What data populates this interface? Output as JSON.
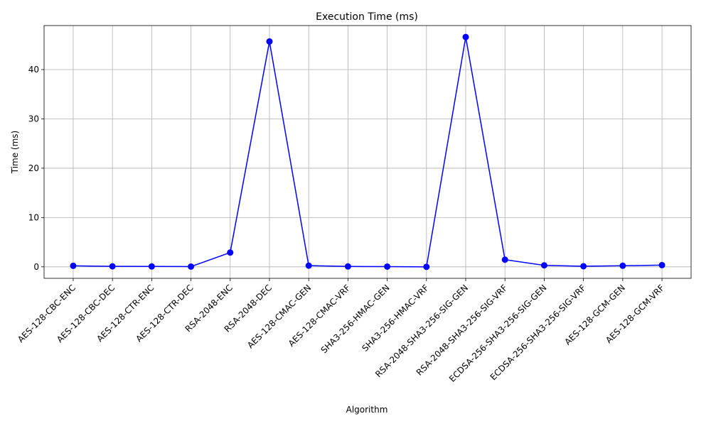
{
  "chart_data": {
    "type": "line",
    "title": "Execution Time (ms)",
    "xlabel": "Algorithm",
    "ylabel": "Time (ms)",
    "categories": [
      "AES-128-CBC-ENC",
      "AES-128-CBC-DEC",
      "AES-128-CTR-ENC",
      "AES-128-CTR-DEC",
      "RSA-2048-ENC",
      "RSA-2048-DEC",
      "AES-128-CMAC-GEN",
      "AES-128-CMAC-VRF",
      "SHA3-256-HMAC-GEN",
      "SHA3-256-HMAC-VRF",
      "RSA-2048-SHA3-256-SIG-GEN",
      "RSA-2048-SHA3-256-SIG-VRF",
      "ECDSA-256-SHA3-256-SIG-GEN",
      "ECDSA-256-SHA3-256-SIG-VRF",
      "AES-128-GCM-GEN",
      "AES-128-GCM-VRF"
    ],
    "series": [
      {
        "values": [
          0.2,
          0.1,
          0.08,
          0.05,
          2.9,
          45.7,
          0.25,
          0.08,
          0.05,
          0.0,
          46.6,
          1.45,
          0.3,
          0.12,
          0.22,
          0.35
        ],
        "color": "#0000ff"
      }
    ],
    "ylim": [
      -2.33,
      48.93
    ],
    "yticks": [
      0,
      10,
      20,
      30,
      40
    ],
    "grid": true,
    "legend": "none"
  }
}
